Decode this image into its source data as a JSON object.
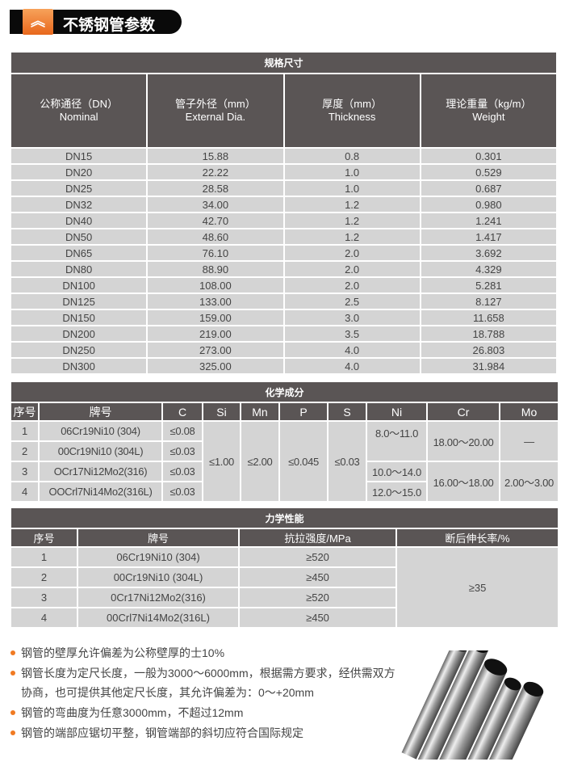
{
  "header": {
    "title": "不锈钢管参数",
    "icon": "double-chevron-up-icon",
    "accent": "#e8671c"
  },
  "spec": {
    "title": "规格尺寸",
    "columns": [
      [
        "公称通径（DN）",
        "Nominal"
      ],
      [
        "管子外径（mm）",
        "External Dia."
      ],
      [
        "厚度（mm）",
        "Thickness"
      ],
      [
        "理论重量（kg/m）",
        "Weight"
      ]
    ],
    "rows": [
      [
        "DN15",
        "15.88",
        "0.8",
        "0.301"
      ],
      [
        "DN20",
        "22.22",
        "1.0",
        "0.529"
      ],
      [
        "DN25",
        "28.58",
        "1.0",
        "0.687"
      ],
      [
        "DN32",
        "34.00",
        "1.2",
        "0.980"
      ],
      [
        "DN40",
        "42.70",
        "1.2",
        "1.241"
      ],
      [
        "DN50",
        "48.60",
        "1.2",
        "1.417"
      ],
      [
        "DN65",
        "76.10",
        "2.0",
        "3.692"
      ],
      [
        "DN80",
        "88.90",
        "2.0",
        "4.329"
      ],
      [
        "DN100",
        "108.00",
        "2.0",
        "5.281"
      ],
      [
        "DN125",
        "133.00",
        "2.5",
        "8.127"
      ],
      [
        "DN150",
        "159.00",
        "3.0",
        "11.658"
      ],
      [
        "DN200",
        "219.00",
        "3.5",
        "18.788"
      ],
      [
        "DN250",
        "273.00",
        "4.0",
        "26.803"
      ],
      [
        "DN300",
        "325.00",
        "4.0",
        "31.984"
      ]
    ]
  },
  "chem": {
    "title": "化学成分",
    "columns": [
      "序号",
      "牌号",
      "C",
      "Si",
      "Mn",
      "P",
      "S",
      "Ni",
      "Cr",
      "Mo"
    ],
    "rows": [
      [
        "1",
        "06Cr19Ni10 (304)",
        "≤0.08"
      ],
      [
        "2",
        "00Cr19Ni10 (304L)",
        "≤0.03"
      ],
      [
        "3",
        "OCr17Ni12Mo2(316)",
        "≤0.03"
      ],
      [
        "4",
        "OOCrl7Ni14Mo2(316L)",
        "≤0.03"
      ]
    ],
    "si": "≤1.00",
    "mn": "≤2.00",
    "p": "≤0.045",
    "s": "≤0.03",
    "ni": [
      "8.0～11.0",
      "10.0～14.0",
      "12.0～15.0"
    ],
    "cr": [
      "18.00～20.00",
      "16.00～18.00"
    ],
    "mo": [
      "—",
      "2.00～3.00"
    ]
  },
  "mech": {
    "title": "力学性能",
    "columns": [
      "序号",
      "牌号",
      "抗拉强度/MPa",
      "断后伸长率/%"
    ],
    "rows": [
      [
        "1",
        "06Cr19Ni10 (304)",
        "≥520"
      ],
      [
        "2",
        "00Cr19Ni10 (304L)",
        "≥450"
      ],
      [
        "3",
        "0Cr17Ni12Mo2(316)",
        "≥520"
      ],
      [
        "4",
        "00Crl7Ni14Mo2(316L)",
        "≥450"
      ]
    ],
    "elongation": "≥35"
  },
  "notes": [
    "钢管的壁厚允许偏差为公称壁厚的士10%",
    "钢管长度为定尺长度，一般为3000～6000mm，根据需方要求，经供需双方协商，也可提供其他定尺长度，其允许偏差为：0～+20mm",
    "钢管的弯曲度为任意3000mm，不超过12mm",
    "钢管的端部应锯切平整，钢管端部的斜切应符合国际规定"
  ]
}
